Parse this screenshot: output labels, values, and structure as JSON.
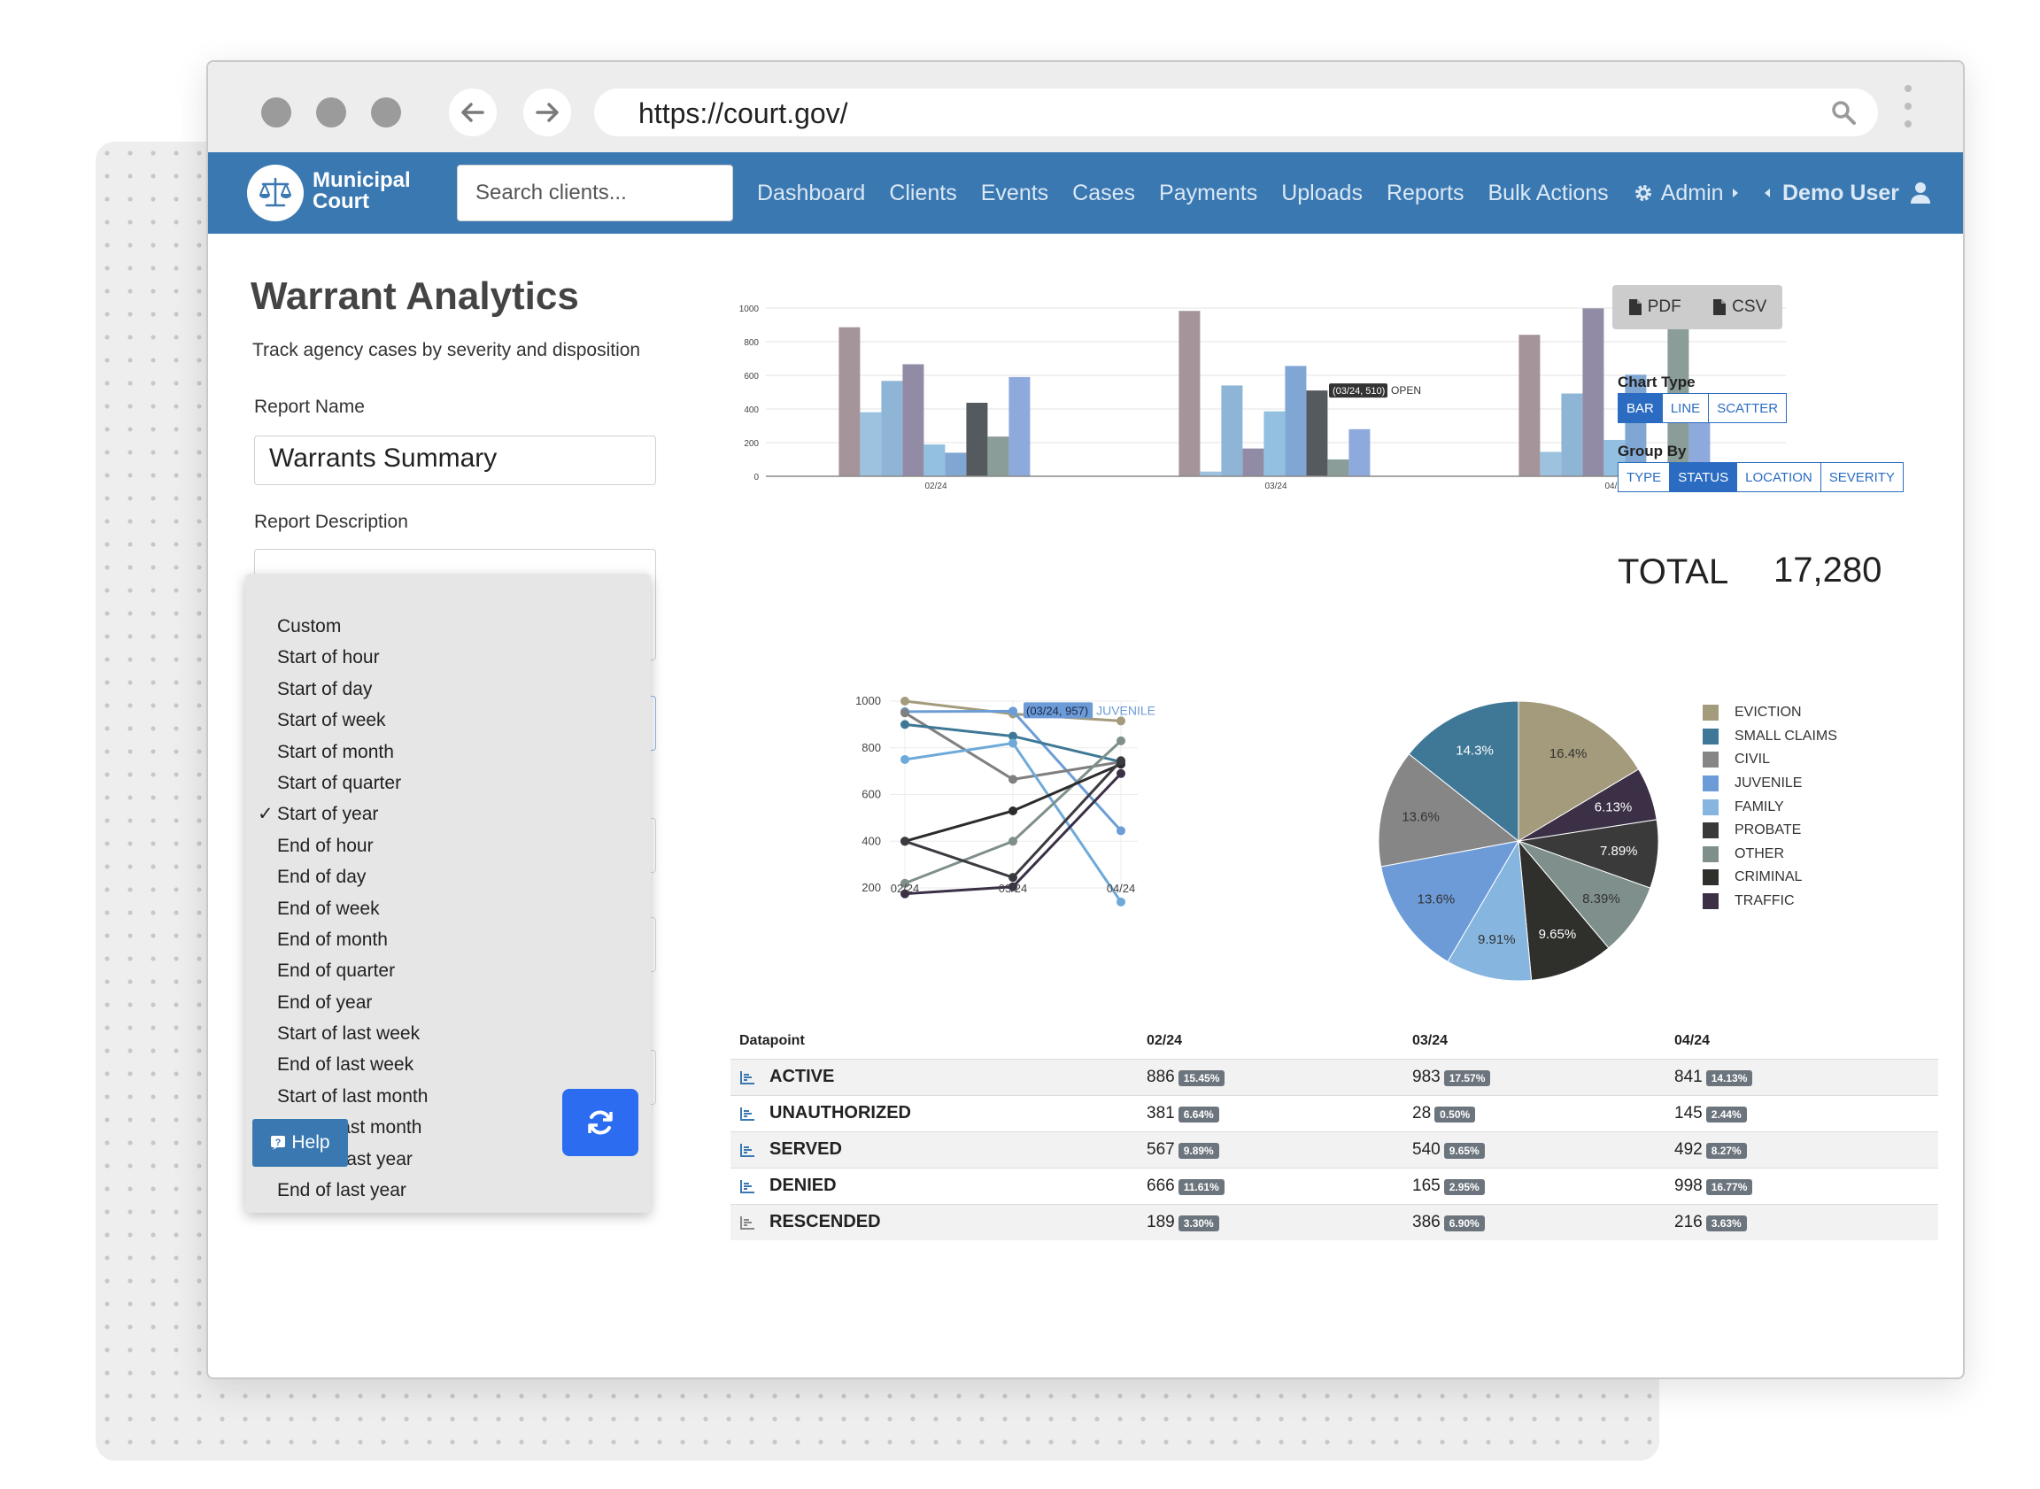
{
  "browser": {
    "url": "https://court.gov/"
  },
  "nav": {
    "brand_line1": "Municipal",
    "brand_line2": "Court",
    "search_placeholder": "Search clients...",
    "links": [
      "Dashboard",
      "Clients",
      "Events",
      "Cases",
      "Payments",
      "Uploads",
      "Reports",
      "Bulk Actions"
    ],
    "admin_label": "Admin",
    "user_label": "Demo User"
  },
  "page": {
    "title": "Warrant Analytics",
    "subtitle": "Track agency cases by severity and disposition"
  },
  "form": {
    "report_name_label": "Report Name",
    "report_name_value": "Warrants Summary",
    "report_description_label": "Report Description"
  },
  "dropdown": {
    "options": [
      "Custom",
      "Start of hour",
      "Start of day",
      "Start of week",
      "Start of month",
      "Start of quarter",
      "Start of year",
      "End of hour",
      "End of day",
      "End of week",
      "End of month",
      "End of quarter",
      "End of year",
      "Start of last week",
      "End of last week",
      "Start of last month",
      "End of last month",
      "Start of last year",
      "End of last year"
    ],
    "selected": "Start of year",
    "check_glyph": "✓"
  },
  "buttons": {
    "help_label": "Help",
    "pdf_label": "PDF",
    "csv_label": "CSV"
  },
  "controls": {
    "chart_type_label": "Chart Type",
    "chart_types": [
      "BAR",
      "LINE",
      "SCATTER"
    ],
    "chart_type_active": "BAR",
    "group_by_label": "Group By",
    "group_by": [
      "TYPE",
      "STATUS",
      "LOCATION",
      "SEVERITY"
    ],
    "group_by_active": "STATUS"
  },
  "total": {
    "label": "TOTAL",
    "value": "17,280"
  },
  "colors": {
    "nav": "#3a78b1",
    "accent": "#2b6cf0"
  },
  "chart_data": [
    {
      "type": "bar",
      "categories": [
        "02/24",
        "03/24",
        "04/24"
      ],
      "ylim": [
        0,
        1000
      ],
      "yticks": [
        0,
        200,
        400,
        600,
        800,
        1000
      ],
      "grid": true,
      "series_values": [
        [
          886,
          381,
          567,
          666,
          189,
          140,
          437,
          236,
          590
        ],
        [
          983,
          28,
          540,
          165,
          386,
          656,
          510,
          100,
          280
        ],
        [
          841,
          145,
          492,
          998,
          216,
          604,
          50,
          968,
          472
        ]
      ],
      "series_colors": [
        "#a59499",
        "#9cc2e0",
        "#8fb5d6",
        "#928ba5",
        "#93c0e0",
        "#80a6d4",
        "#555a5f",
        "#8a9d99",
        "#8ea9dc"
      ],
      "tooltip": {
        "text": "(03/24, 510)",
        "label": "OPEN"
      }
    },
    {
      "type": "line",
      "categories": [
        "02/24",
        "03/24",
        "04/24"
      ],
      "ylim": [
        100,
        1000
      ],
      "yticks": [
        200,
        400,
        600,
        800,
        1000
      ],
      "series": [
        {
          "values": [
            1000,
            945,
            915
          ],
          "color": "#a49b7c"
        },
        {
          "values": [
            955,
            957,
            445
          ],
          "color": "#6c9dd6"
        },
        {
          "values": [
            950,
            665,
            740
          ],
          "color": "#808080"
        },
        {
          "values": [
            900,
            850,
            740
          ],
          "color": "#3f7896"
        },
        {
          "values": [
            750,
            820,
            140
          ],
          "color": "#6eaad9"
        },
        {
          "values": [
            220,
            400,
            830
          ],
          "color": "#7f8f8c"
        },
        {
          "values": [
            400,
            530,
            730
          ],
          "color": "#2b2b2b"
        },
        {
          "values": [
            400,
            245,
            745
          ],
          "color": "#3a3a40"
        },
        {
          "values": [
            175,
            205,
            690
          ],
          "color": "#3b3046"
        }
      ],
      "tooltip": {
        "text": "(03/24, 957)",
        "label": "JUVENILE"
      }
    },
    {
      "type": "pie",
      "slices": [
        {
          "label": "EVICTION",
          "value": 16.4,
          "text": "16.4%",
          "color": "#a49b7c"
        },
        {
          "label": "TRAFFIC",
          "value": 6.13,
          "text": "6.13%",
          "color": "#3b3046"
        },
        {
          "label": "PROBATE",
          "value": 7.89,
          "text": "7.89%",
          "color": "#3a3a3a"
        },
        {
          "label": "OTHER",
          "value": 8.39,
          "text": "8.39%",
          "color": "#7f8f8c"
        },
        {
          "label": "CRIMINAL",
          "value": 9.65,
          "text": "9.65%",
          "color": "#2f302c"
        },
        {
          "label": "FAMILY",
          "value": 9.91,
          "text": "9.91%",
          "color": "#86b6e0"
        },
        {
          "label": "JUVENILE",
          "value": 13.6,
          "text": "13.6%",
          "color": "#6c9bd8"
        },
        {
          "label": "CIVIL",
          "value": 13.6,
          "text": "13.6%",
          "color": "#868686"
        },
        {
          "label": "SMALL CLAIMS",
          "value": 14.3,
          "text": "14.3%",
          "color": "#3f7896"
        }
      ],
      "legend": [
        {
          "label": "EVICTION",
          "color": "#a49b7c"
        },
        {
          "label": "SMALL CLAIMS",
          "color": "#3f7896"
        },
        {
          "label": "CIVIL",
          "color": "#868686"
        },
        {
          "label": "JUVENILE",
          "color": "#6c9bd8"
        },
        {
          "label": "FAMILY",
          "color": "#86b6e0"
        },
        {
          "label": "PROBATE",
          "color": "#3a3a3a"
        },
        {
          "label": "OTHER",
          "color": "#7f8f8c"
        },
        {
          "label": "CRIMINAL",
          "color": "#2f302c"
        },
        {
          "label": "TRAFFIC",
          "color": "#3b3046"
        }
      ]
    },
    {
      "type": "table",
      "columns": [
        "Datapoint",
        "02/24",
        "03/24",
        "04/24"
      ],
      "rows": [
        {
          "name": "ACTIVE",
          "cells": [
            [
              "886",
              "15.45%"
            ],
            [
              "983",
              "17.57%"
            ],
            [
              "841",
              "14.13%"
            ]
          ]
        },
        {
          "name": "UNAUTHORIZED",
          "cells": [
            [
              "381",
              "6.64%"
            ],
            [
              "28",
              "0.50%"
            ],
            [
              "145",
              "2.44%"
            ]
          ]
        },
        {
          "name": "SERVED",
          "cells": [
            [
              "567",
              "9.89%"
            ],
            [
              "540",
              "9.65%"
            ],
            [
              "492",
              "8.27%"
            ]
          ]
        },
        {
          "name": "DENIED",
          "cells": [
            [
              "666",
              "11.61%"
            ],
            [
              "165",
              "2.95%"
            ],
            [
              "998",
              "16.77%"
            ]
          ]
        },
        {
          "name": "RESCENDED",
          "cells": [
            [
              "189",
              "3.30%"
            ],
            [
              "386",
              "6.90%"
            ],
            [
              "216",
              "3.63%"
            ]
          ]
        }
      ]
    }
  ]
}
